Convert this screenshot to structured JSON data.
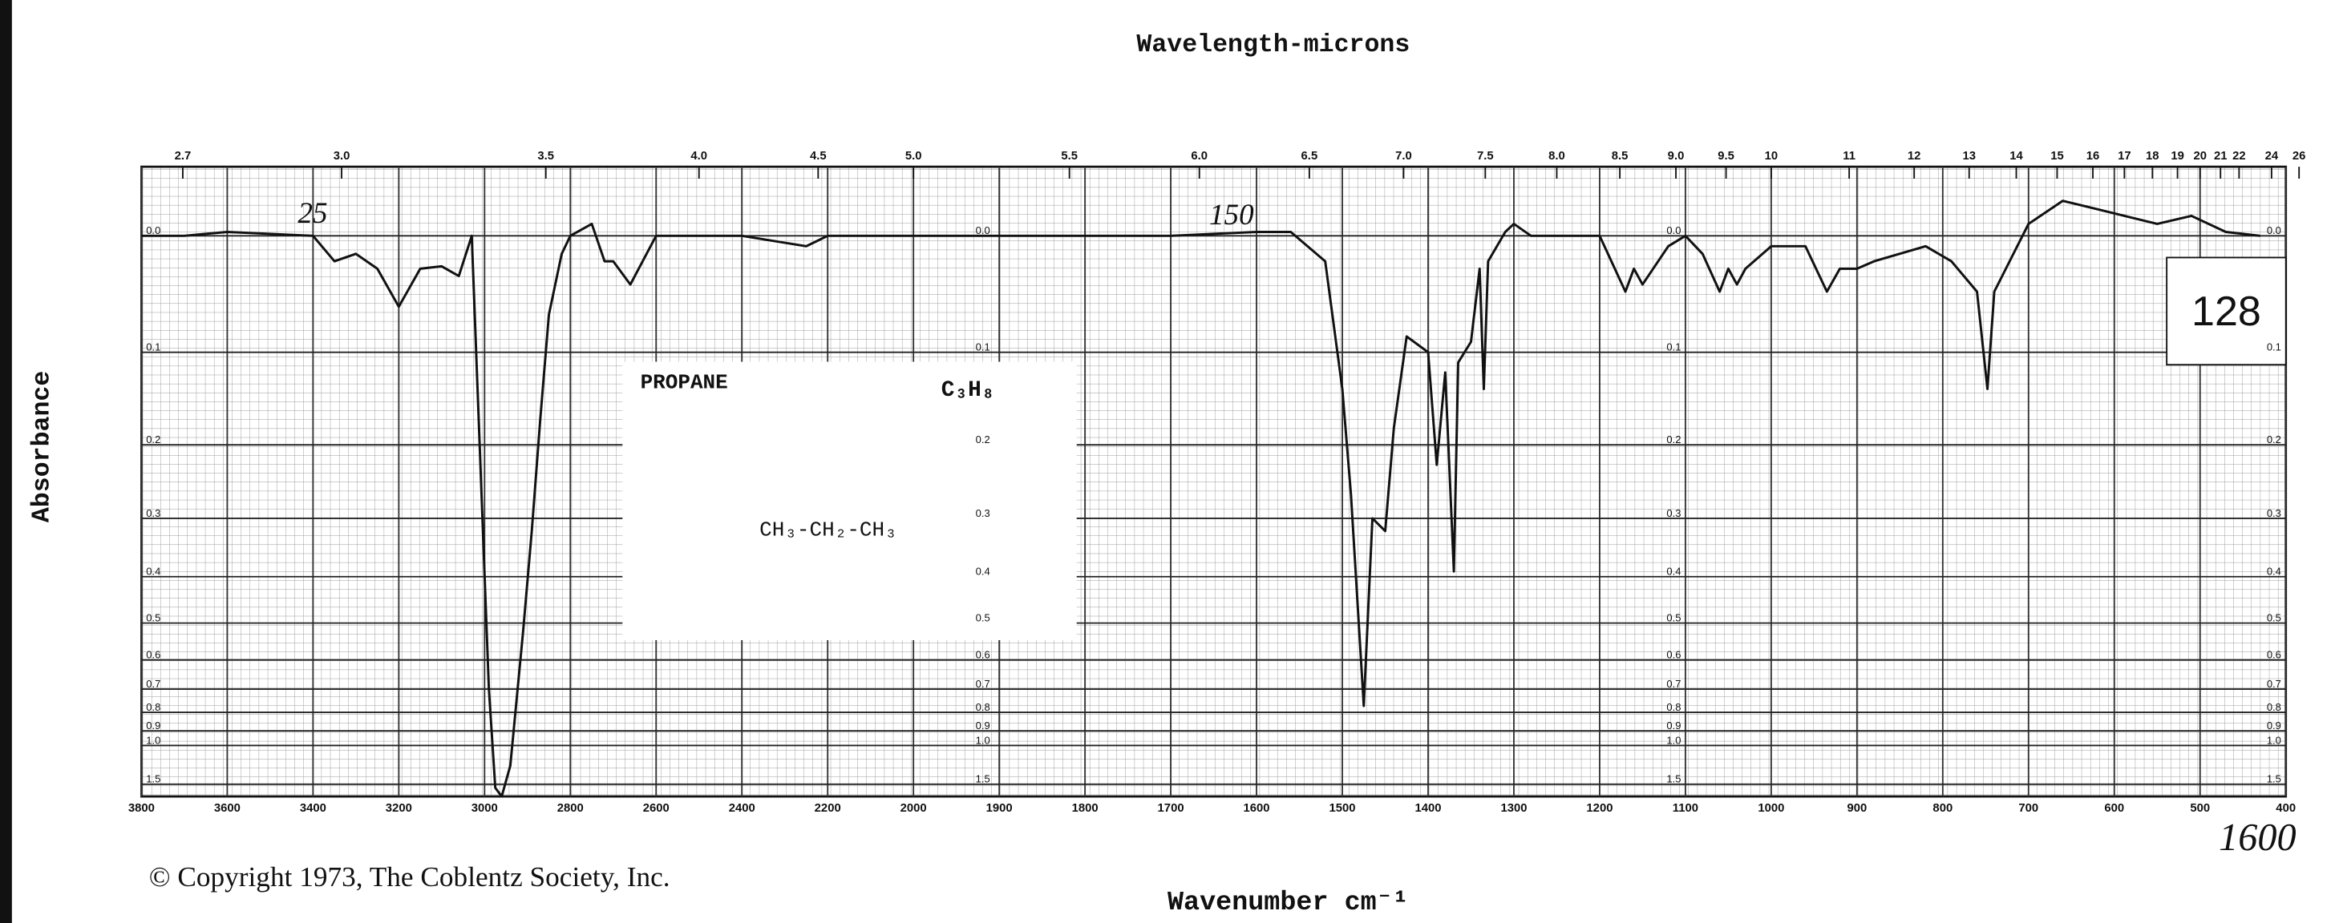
{
  "chart_data": {
    "type": "line",
    "title": "Wavelength-microns",
    "x_label": "Wavenumber cm⁻¹",
    "y_label": "Absorbance",
    "yscale": "transmittance",
    "compound": "PROPANE",
    "formula": "C₃H₈",
    "structure": "CH₃-CH₂-CH₃",
    "spectrum_number": "128",
    "copyright": "© Copyright 1973, The Coblentz Society, Inc.",
    "annotations": [
      "25",
      "150",
      "1600"
    ],
    "color": "#111111",
    "grid": true,
    "x": [
      3800,
      3700,
      3600,
      3400,
      3350,
      3300,
      3250,
      3200,
      3150,
      3100,
      3060,
      3030,
      2990,
      2975,
      2960,
      2940,
      2910,
      2890,
      2870,
      2850,
      2820,
      2800,
      2750,
      2720,
      2700,
      2660,
      2600,
      2500,
      2400,
      2250,
      2200,
      2000,
      1800,
      1700,
      1600,
      1560,
      1520,
      1500,
      1490,
      1475,
      1465,
      1450,
      1440,
      1425,
      1400,
      1390,
      1380,
      1370,
      1365,
      1350,
      1340,
      1335,
      1330,
      1310,
      1300,
      1280,
      1200,
      1170,
      1160,
      1150,
      1120,
      1100,
      1080,
      1060,
      1050,
      1040,
      1030,
      1000,
      960,
      935,
      920,
      900,
      880,
      820,
      790,
      760,
      748,
      740,
      700,
      660,
      620,
      550,
      510,
      470,
      430
    ],
    "values": [
      0.0,
      0.0,
      -0.003,
      0.0,
      0.02,
      0.014,
      0.026,
      0.058,
      0.026,
      0.024,
      0.032,
      0.0,
      0.7,
      1.6,
      2.0,
      1.19,
      0.52,
      0.32,
      0.17,
      0.065,
      0.014,
      0.0,
      -0.009,
      0.02,
      0.02,
      0.039,
      0.0,
      0.0,
      0.0,
      0.008,
      0.0,
      0.0,
      0.0,
      0.0,
      -0.003,
      -0.003,
      0.02,
      0.137,
      0.265,
      0.77,
      0.3,
      0.32,
      0.18,
      0.085,
      0.1,
      0.225,
      0.12,
      0.39,
      0.11,
      0.09,
      0.026,
      0.137,
      0.02,
      -0.003,
      -0.009,
      0.0,
      0.0,
      0.045,
      0.026,
      0.039,
      0.008,
      0.0,
      0.014,
      0.045,
      0.026,
      0.039,
      0.026,
      0.008,
      0.008,
      0.045,
      0.026,
      0.026,
      0.02,
      0.008,
      0.02,
      0.045,
      0.137,
      0.045,
      -0.009,
      -0.026,
      -0.02,
      -0.009,
      -0.015,
      -0.003,
      0.0
    ],
    "xlim": [
      3800,
      400
    ],
    "ylim": [
      -0.05,
      2
    ],
    "xticks": [
      3800,
      3600,
      3400,
      3200,
      3000,
      2800,
      2600,
      2400,
      2200,
      2000,
      1900,
      1800,
      1700,
      1600,
      1500,
      1400,
      1300,
      1200,
      1100,
      1000,
      900,
      800,
      700,
      600,
      500,
      400
    ],
    "yticks": [
      {
        "value": 0,
        "label": "0.0"
      },
      0.1,
      0.2,
      0.3,
      0.4,
      0.5,
      0.6,
      0.7,
      0.8,
      0.9,
      {
        "value": 1,
        "label": "1.0"
      },
      1.5
    ],
    "x2ticks": [
      2.7,
      {
        "value": 3,
        "label": "3.0"
      },
      3.5,
      {
        "value": 4,
        "label": "4.0"
      },
      4.5,
      {
        "value": 5,
        "label": "5.0"
      },
      5.5,
      {
        "value": 6,
        "label": "6.0"
      },
      6.5,
      {
        "value": 7,
        "label": "7.0"
      },
      7.5,
      {
        "value": 8,
        "label": "8.0"
      },
      8.5,
      {
        "value": 9,
        "label": "9.0"
      },
      9.5,
      10,
      11,
      12,
      13,
      14,
      15,
      16,
      17,
      18,
      19,
      20,
      21,
      22,
      24,
      26
    ]
  }
}
